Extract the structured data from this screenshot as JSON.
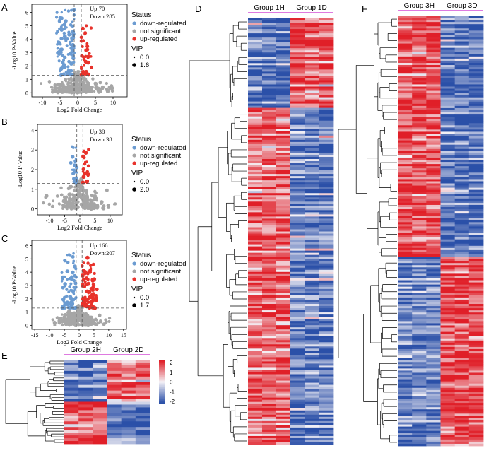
{
  "colors": {
    "down": "#6b9bd1",
    "ns": "#a6a6a6",
    "up": "#e8322b",
    "heat_low": "#2b50a8",
    "heat_mid": "#f4f1f6",
    "heat_high": "#e01f28",
    "group_bar": "#d34fd6"
  },
  "volcano_legend": {
    "status_title": "Status",
    "down_label": "down-regulated",
    "ns_label": "not significant",
    "up_label": "up-regulated",
    "vip_title": "VIP"
  },
  "chart_data": [
    {
      "type": "scatter",
      "panel": "A",
      "xlabel": "Log2 Fold Change",
      "ylabel": "-Log10 P-Value",
      "xlim": [
        -13,
        14
      ],
      "ylim": [
        -0.3,
        6.6
      ],
      "xticks": [
        -10,
        -5,
        0,
        5,
        10
      ],
      "yticks": [
        0,
        1,
        2,
        3,
        4,
        5,
        6
      ],
      "xtick_labels": [
        "-10",
        "-5",
        "0",
        "5",
        "10"
      ],
      "ytick_labels": [
        "0",
        "1",
        "2",
        "3",
        "4",
        "5",
        "6"
      ],
      "vlines": [
        -1,
        1
      ],
      "hline": 1.3,
      "up_text": "Up:70",
      "down_text": "Down:285",
      "vip_values": [
        "0.0",
        "1.6"
      ],
      "counts": {
        "up": 70,
        "down": 285
      },
      "series": [
        {
          "name": "down-regulated",
          "x_range": [
            -6,
            -1
          ],
          "y_range": [
            1.3,
            6.2
          ]
        },
        {
          "name": "not significant",
          "x_range": [
            -12,
            12
          ],
          "y_range": [
            0,
            1.3
          ]
        },
        {
          "name": "up-regulated",
          "x_range": [
            1,
            4
          ],
          "y_range": [
            1.3,
            5.0
          ]
        }
      ]
    },
    {
      "type": "scatter",
      "panel": "B",
      "xlabel": "Log2 Fold Change",
      "ylabel": "-Log10 P-Value",
      "xlim": [
        -14,
        14
      ],
      "ylim": [
        -0.3,
        4.3
      ],
      "xticks": [
        -10,
        -5,
        0,
        5,
        10
      ],
      "yticks": [
        0,
        1,
        2,
        3,
        4
      ],
      "xtick_labels": [
        "-10",
        "-5",
        "0",
        "5",
        "10"
      ],
      "ytick_labels": [
        "0",
        "1",
        "2",
        "3",
        "4"
      ],
      "vlines": [
        -1,
        1
      ],
      "hline": 1.3,
      "up_text": "Up:38",
      "down_text": "Down:38",
      "vip_values": [
        "0.0",
        "2.0"
      ],
      "counts": {
        "up": 38,
        "down": 38
      },
      "series": [
        {
          "name": "down-regulated",
          "x_range": [
            -3,
            -1
          ],
          "y_range": [
            1.3,
            3.2
          ]
        },
        {
          "name": "not significant",
          "x_range": [
            -12,
            12
          ],
          "y_range": [
            0,
            1.3
          ]
        },
        {
          "name": "up-regulated",
          "x_range": [
            1,
            3
          ],
          "y_range": [
            1.3,
            3.2
          ]
        }
      ]
    },
    {
      "type": "scatter",
      "panel": "C",
      "xlabel": "Log2 Fold Change",
      "ylabel": "-Log10 P-Value",
      "xlim": [
        -16,
        16
      ],
      "ylim": [
        -0.3,
        6.4
      ],
      "xticks": [
        -15,
        -10,
        -5,
        0,
        5,
        10,
        15
      ],
      "yticks": [
        0,
        1,
        2,
        3,
        4,
        5,
        6
      ],
      "xtick_labels": [
        "-15",
        "-10",
        "-5",
        "0",
        "5",
        "10",
        "15"
      ],
      "ytick_labels": [
        "0",
        "1",
        "2",
        "3",
        "4",
        "5",
        "6"
      ],
      "vlines": [
        -1,
        1
      ],
      "hline": 1.3,
      "up_text": "Up:166",
      "down_text": "Down:207",
      "vip_values": [
        "0.0",
        "1.7"
      ],
      "counts": {
        "up": 166,
        "down": 207
      },
      "series": [
        {
          "name": "down-regulated",
          "x_range": [
            -6,
            -1
          ],
          "y_range": [
            1.3,
            5.9
          ]
        },
        {
          "name": "not significant",
          "x_range": [
            -15,
            15
          ],
          "y_range": [
            0,
            1.3
          ]
        },
        {
          "name": "up-regulated",
          "x_range": [
            1,
            6
          ],
          "y_range": [
            1.3,
            5.1
          ]
        }
      ]
    },
    {
      "type": "heatmap",
      "panel": "D",
      "groups": [
        "Group 1H",
        "Group 1D"
      ],
      "columns": 6,
      "rows": 200,
      "clusters": [
        {
          "row_fraction": 0.21,
          "group_1": -0.9,
          "group_2": 0.9
        },
        {
          "row_fraction": 0.79,
          "group_1": 0.8,
          "group_2": -0.8
        }
      ]
    },
    {
      "type": "heatmap",
      "panel": "E",
      "groups": [
        "Group 2H",
        "Group 2D"
      ],
      "columns": 6,
      "rows": 30,
      "colorbar_ticks": [
        "2",
        "1",
        "0",
        "-1",
        "-2"
      ],
      "clusters": [
        {
          "row_fraction": 0.5,
          "group_1": -0.9,
          "group_2": 0.8
        },
        {
          "row_fraction": 0.5,
          "group_1": 0.8,
          "group_2": -0.9
        }
      ]
    },
    {
      "type": "heatmap",
      "panel": "F",
      "groups": [
        "Group 3H",
        "Group 3D"
      ],
      "columns": 6,
      "rows": 200,
      "clusters": [
        {
          "row_fraction": 0.56,
          "group_1": 0.9,
          "group_2": -0.9
        },
        {
          "row_fraction": 0.44,
          "group_1": -0.8,
          "group_2": 0.9
        }
      ]
    }
  ]
}
